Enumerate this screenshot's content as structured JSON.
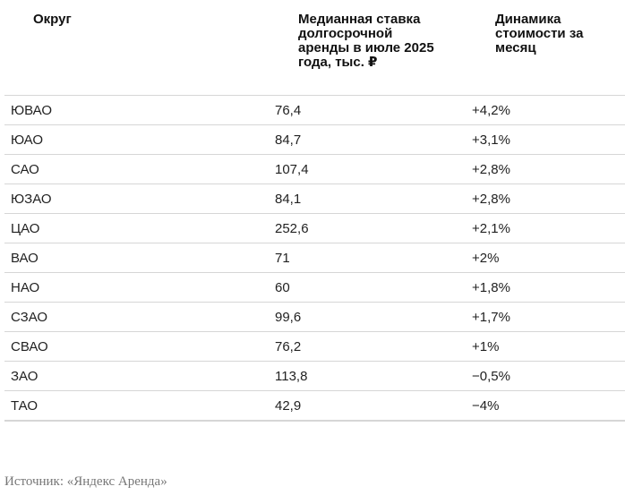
{
  "table": {
    "header": [
      "Округ",
      "Медианная ставка долгосрочной аренды в июле 2025 года, тыс. ₽",
      "Динамика стоимости за месяц"
    ],
    "rows": [
      [
        "ЮВАО",
        "76,4",
        "+4,2%"
      ],
      [
        "ЮАО",
        "84,7",
        "+3,1%"
      ],
      [
        "САО",
        "107,4",
        "+2,8%"
      ],
      [
        "ЮЗАО",
        "84,1",
        "+2,8%"
      ],
      [
        "ЦАО",
        "252,6",
        "+2,1%"
      ],
      [
        "ВАО",
        "71",
        "+2%"
      ],
      [
        "НАО",
        "60",
        "+1,8%"
      ],
      [
        "СЗАО",
        "99,6",
        "+1,7%"
      ],
      [
        "СВАО",
        "76,2",
        "+1%"
      ],
      [
        "ЗАО",
        "113,8",
        "−0,5%"
      ],
      [
        "ТАО",
        "42,9",
        "−4%"
      ]
    ]
  },
  "source": "Источник: «Яндекс Аренда»"
}
